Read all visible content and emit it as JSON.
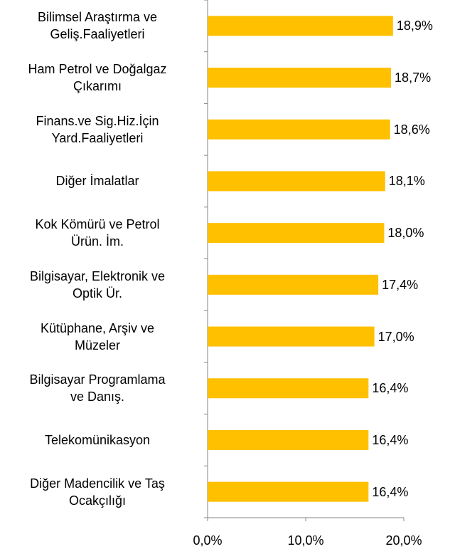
{
  "chart_data": {
    "type": "bar",
    "orientation": "horizontal",
    "categories": [
      "Bilimsel Araştırma ve\nGeliş.Faaliyetleri",
      "Ham Petrol ve Doğalgaz\nÇıkarımı",
      "Finans.ve Sig.Hiz.İçin\nYard.Faaliyetleri",
      "Diğer İmalatlar",
      "Kok Kömürü ve Petrol\nÜrün. İm.",
      "Bilgisayar, Elektronik ve\nOptik Ür.",
      "Kütüphane, Arşiv ve\nMüzeler",
      "Bilgisayar Programlama\nve Danış.",
      "Telekomünikasyon",
      "Diğer Madencilik ve Taş\nOcakçılığı"
    ],
    "values": [
      18.9,
      18.7,
      18.6,
      18.1,
      18.0,
      17.4,
      17.0,
      16.4,
      16.4,
      16.4
    ],
    "value_labels": [
      "18,9%",
      "18,7%",
      "18,6%",
      "18,1%",
      "18,0%",
      "17,4%",
      "17,0%",
      "16,4%",
      "16,4%",
      "16,4%"
    ],
    "color": "#ffc000",
    "xlim": [
      0,
      20
    ],
    "xticks": [
      {
        "value": 0,
        "label": "0,0%"
      },
      {
        "value": 10,
        "label": "10,0%"
      },
      {
        "value": 20,
        "label": "20,0%"
      }
    ],
    "grid": false
  }
}
